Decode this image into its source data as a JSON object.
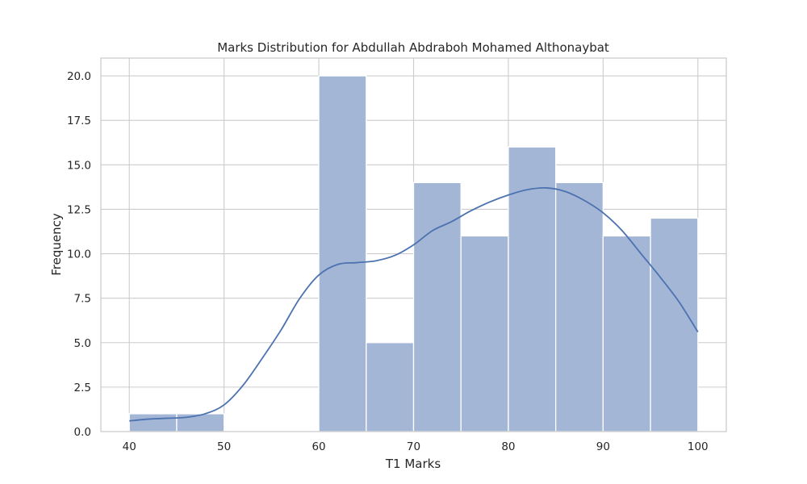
{
  "chart_data": {
    "type": "histogram",
    "title": "Marks Distribution for Abdullah Abdraboh Mohamed Althonaybat",
    "xlabel": "T1 Marks",
    "ylabel": "Frequency",
    "xlim": [
      37,
      103
    ],
    "ylim": [
      0,
      21
    ],
    "xticks": [
      40,
      50,
      60,
      70,
      80,
      90,
      100
    ],
    "xtick_labels": [
      "40",
      "50",
      "60",
      "70",
      "80",
      "90",
      "100"
    ],
    "yticks": [
      0,
      2.5,
      5,
      7.5,
      10,
      12.5,
      15,
      17.5,
      20
    ],
    "ytick_labels": [
      "0.0",
      "2.5",
      "5.0",
      "7.5",
      "10.0",
      "12.5",
      "15.0",
      "17.5",
      "20.0"
    ],
    "grid": true,
    "bins": [
      {
        "start": 40,
        "end": 45,
        "count": 1
      },
      {
        "start": 45,
        "end": 50,
        "count": 1
      },
      {
        "start": 50,
        "end": 55,
        "count": 0
      },
      {
        "start": 55,
        "end": 60,
        "count": 0
      },
      {
        "start": 60,
        "end": 65,
        "count": 20
      },
      {
        "start": 65,
        "end": 70,
        "count": 5
      },
      {
        "start": 70,
        "end": 75,
        "count": 14
      },
      {
        "start": 75,
        "end": 80,
        "count": 11
      },
      {
        "start": 80,
        "end": 85,
        "count": 16
      },
      {
        "start": 85,
        "end": 90,
        "count": 14
      },
      {
        "start": 90,
        "end": 95,
        "count": 11
      },
      {
        "start": 95,
        "end": 100,
        "count": 12
      }
    ],
    "kde": {
      "x": [
        40,
        42,
        44,
        46,
        48,
        50,
        52,
        54,
        56,
        58,
        60,
        62,
        64,
        66,
        68,
        70,
        72,
        74,
        76,
        78,
        80,
        82,
        84,
        86,
        88,
        90,
        92,
        94,
        96,
        98,
        100
      ],
      "y": [
        0.6,
        0.7,
        0.75,
        0.8,
        1.0,
        1.5,
        2.6,
        4.1,
        5.7,
        7.5,
        8.8,
        9.4,
        9.5,
        9.6,
        9.9,
        10.5,
        11.3,
        11.8,
        12.4,
        12.9,
        13.3,
        13.6,
        13.7,
        13.5,
        13.0,
        12.3,
        11.3,
        10.0,
        8.7,
        7.3,
        5.6
      ]
    },
    "colors": {
      "bar_fill": "#a4b6d6",
      "bar_edge": "#ffffff",
      "kde_line": "#4c72b0",
      "grid": "#cccccc",
      "axes_edge": "#cccccc"
    }
  }
}
